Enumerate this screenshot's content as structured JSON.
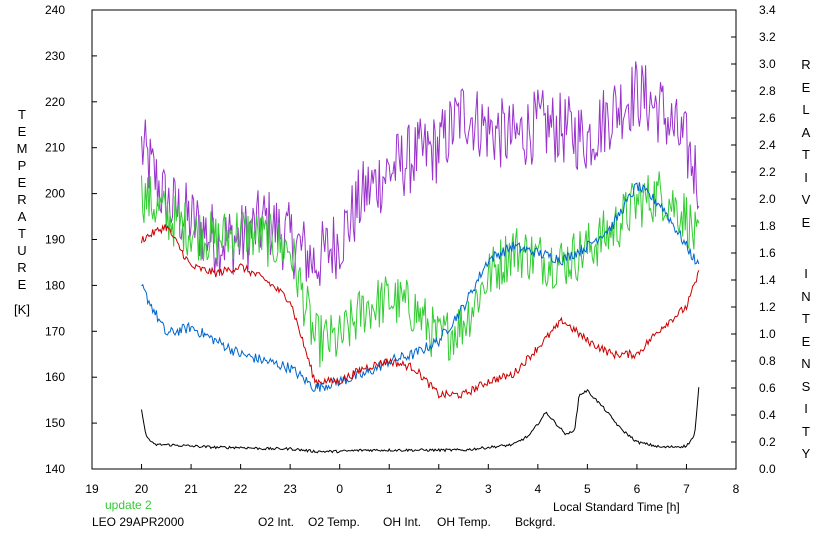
{
  "chart_data": {
    "type": "line",
    "xlabel": "Local Standard Time [h]",
    "x_ticks": [
      "19",
      "20",
      "21",
      "22",
      "23",
      "0",
      "1",
      "2",
      "3",
      "4",
      "5",
      "6",
      "7",
      "8"
    ],
    "x_range_hours_after_19": [
      0,
      13
    ],
    "left_axis": {
      "label": "TEMPERATURE",
      "unit": "[K]",
      "ylim": [
        140,
        240
      ],
      "ticks": [
        "140",
        "150",
        "160",
        "170",
        "180",
        "190",
        "200",
        "210",
        "220",
        "230",
        "240"
      ]
    },
    "right_axis": {
      "label": "RELATIVE INTENSITY",
      "ylim": [
        0.0,
        3.4
      ],
      "ticks": [
        "0.0",
        "0.2",
        "0.4",
        "0.6",
        "0.8",
        "1.0",
        "1.2",
        "1.4",
        "1.6",
        "1.8",
        "2.0",
        "2.2",
        "2.4",
        "2.6",
        "2.8",
        "3.0",
        "3.2",
        "3.4"
      ]
    },
    "grid": false,
    "series": [
      {
        "name": "O2 Temp.",
        "axis": "left",
        "color": "#9933cc",
        "noise": 8,
        "x": [
          "20:00",
          "20:30",
          "21:00",
          "21:30",
          "22:00",
          "22:30",
          "23:00",
          "23:30",
          "00:00",
          "00:30",
          "01:00",
          "01:30",
          "02:00",
          "02:30",
          "03:00",
          "03:30",
          "04:00",
          "04:30",
          "05:00",
          "05:30",
          "06:00",
          "06:30",
          "07:00",
          "07:15"
        ],
        "values": [
          210,
          198,
          194,
          190,
          190,
          194,
          190,
          185,
          190,
          200,
          205,
          208,
          210,
          218,
          214,
          212,
          215,
          214,
          212,
          218,
          222,
          218,
          210,
          203
        ]
      },
      {
        "name": "OH Temp.",
        "axis": "left",
        "color": "#33cc33",
        "noise": 6,
        "x": [
          "20:00",
          "20:30",
          "21:00",
          "21:30",
          "22:00",
          "22:30",
          "23:00",
          "23:30",
          "00:00",
          "00:30",
          "01:00",
          "01:30",
          "02:00",
          "02:30",
          "03:00",
          "03:30",
          "04:00",
          "04:30",
          "05:00",
          "05:30",
          "06:00",
          "06:30",
          "07:00",
          "07:15"
        ],
        "values": [
          200,
          195,
          192,
          190,
          192,
          190,
          188,
          168,
          168,
          175,
          177,
          175,
          168,
          172,
          182,
          188,
          186,
          185,
          188,
          192,
          198,
          200,
          195,
          188
        ]
      },
      {
        "name": "O2 Int.",
        "axis": "right",
        "color": "#0066cc",
        "noise": 0.04,
        "x": [
          "20:00",
          "20:30",
          "21:00",
          "21:30",
          "22:00",
          "22:30",
          "23:00",
          "23:30",
          "00:00",
          "00:30",
          "01:00",
          "01:30",
          "02:00",
          "02:30",
          "03:00",
          "03:30",
          "04:00",
          "04:30",
          "05:00",
          "05:30",
          "06:00",
          "06:30",
          "07:00",
          "07:15"
        ],
        "values": [
          1.35,
          1.0,
          1.05,
          0.95,
          0.85,
          0.8,
          0.75,
          0.6,
          0.65,
          0.7,
          0.8,
          0.85,
          0.95,
          1.2,
          1.55,
          1.65,
          1.6,
          1.55,
          1.65,
          1.8,
          2.1,
          1.95,
          1.65,
          1.5
        ]
      },
      {
        "name": "OH Int.",
        "axis": "right",
        "color": "#cc0000",
        "noise": 0.03,
        "x": [
          "20:00",
          "20:30",
          "21:00",
          "21:30",
          "22:00",
          "22:30",
          "23:00",
          "23:30",
          "00:00",
          "00:30",
          "01:00",
          "01:30",
          "02:00",
          "02:30",
          "03:00",
          "03:30",
          "04:00",
          "04:30",
          "05:00",
          "05:30",
          "06:00",
          "06:30",
          "07:00",
          "07:15"
        ],
        "values": [
          1.7,
          1.8,
          1.5,
          1.45,
          1.5,
          1.4,
          1.25,
          0.65,
          0.65,
          0.75,
          0.8,
          0.75,
          0.55,
          0.55,
          0.65,
          0.7,
          0.9,
          1.1,
          0.95,
          0.85,
          0.85,
          1.05,
          1.2,
          1.45
        ]
      },
      {
        "name": "Bckgrd.",
        "axis": "right",
        "color": "#000000",
        "noise": 0.01,
        "x": [
          "20:00",
          "20:05",
          "20:15",
          "20:30",
          "21:00",
          "21:30",
          "22:00",
          "22:30",
          "23:00",
          "23:30",
          "00:00",
          "00:30",
          "01:00",
          "01:30",
          "02:00",
          "02:30",
          "03:00",
          "03:30",
          "03:50",
          "04:10",
          "04:20",
          "04:35",
          "04:45",
          "04:50",
          "05:00",
          "05:20",
          "05:40",
          "06:00",
          "06:30",
          "07:00",
          "07:10",
          "07:15"
        ],
        "values": [
          0.45,
          0.25,
          0.18,
          0.18,
          0.17,
          0.16,
          0.16,
          0.15,
          0.15,
          0.13,
          0.13,
          0.14,
          0.14,
          0.14,
          0.14,
          0.14,
          0.16,
          0.18,
          0.25,
          0.42,
          0.35,
          0.25,
          0.3,
          0.55,
          0.58,
          0.45,
          0.3,
          0.2,
          0.16,
          0.17,
          0.25,
          0.6
        ]
      }
    ]
  },
  "legend": {
    "update": "update 2",
    "site": "LEO 29APR2000",
    "items": [
      {
        "label": "O2 Int.",
        "color": "#0066cc"
      },
      {
        "label": "O2 Temp.",
        "color": "#9933cc"
      },
      {
        "label": "OH Int.",
        "color": "#cc0000"
      },
      {
        "label": "OH Temp.",
        "color": "#33cc33"
      },
      {
        "label": "Bckgrd.",
        "color": "#000000"
      }
    ]
  }
}
